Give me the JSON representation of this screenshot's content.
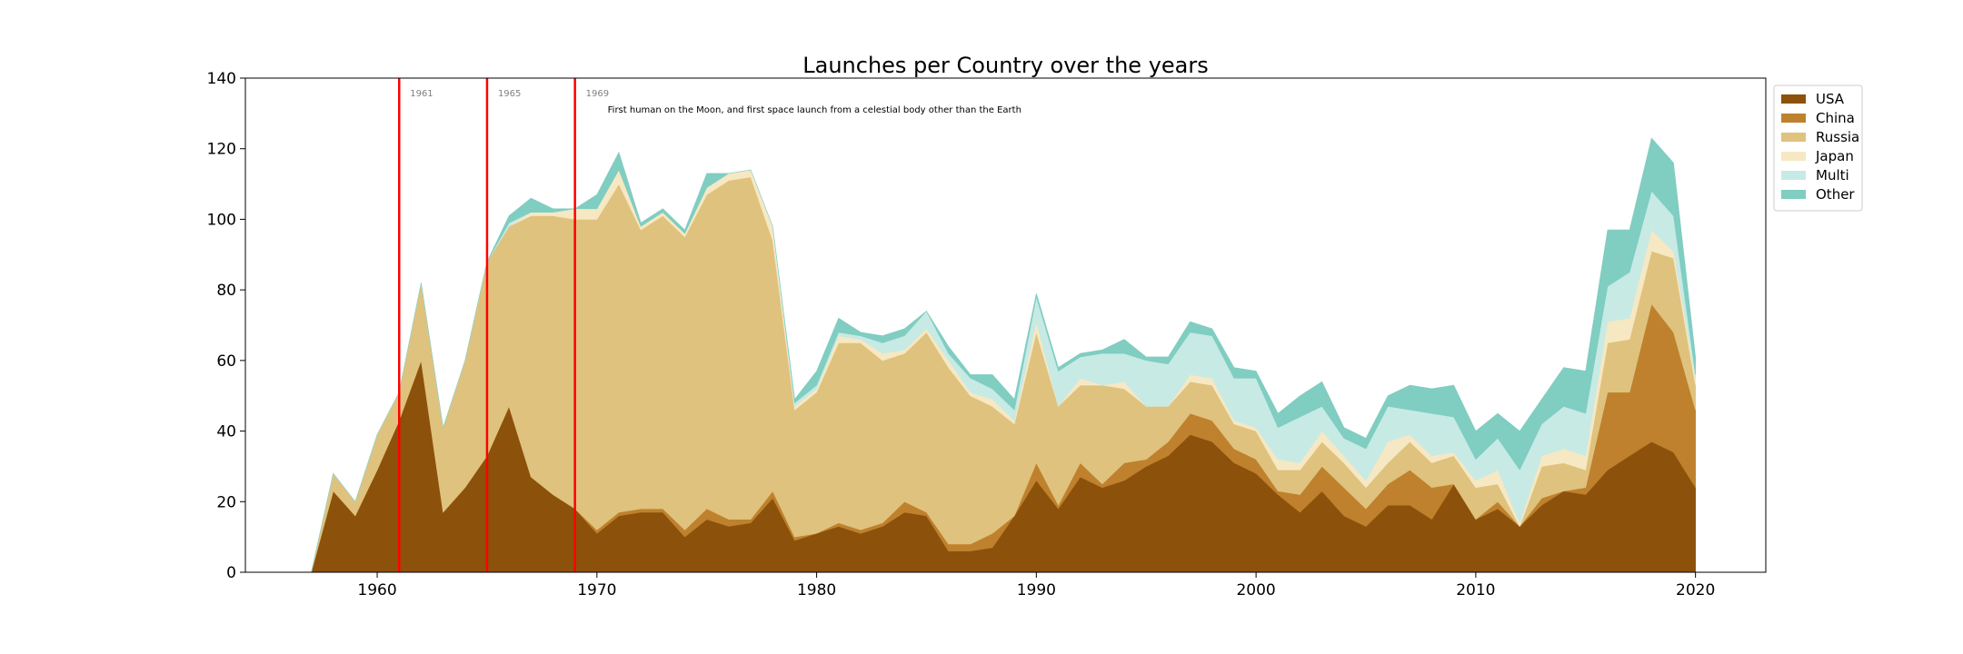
{
  "chart_data": {
    "type": "area",
    "stacked": true,
    "title": "Launches per Country over the years",
    "xlabel": "",
    "ylabel": "",
    "xlim": [
      1954,
      2023.2
    ],
    "ylim": [
      0,
      140
    ],
    "x_ticks": [
      1960,
      1970,
      1980,
      1990,
      2000,
      2010,
      2020
    ],
    "y_ticks": [
      0,
      20,
      40,
      60,
      80,
      100,
      120,
      140
    ],
    "grid": false,
    "legend_position": "outside-top-right",
    "x": [
      1957,
      1958,
      1959,
      1960,
      1961,
      1962,
      1963,
      1964,
      1965,
      1966,
      1967,
      1968,
      1969,
      1970,
      1971,
      1972,
      1973,
      1974,
      1975,
      1976,
      1977,
      1978,
      1979,
      1980,
      1981,
      1982,
      1983,
      1984,
      1985,
      1986,
      1987,
      1988,
      1989,
      1990,
      1991,
      1992,
      1993,
      1994,
      1995,
      1996,
      1997,
      1998,
      1999,
      2000,
      2001,
      2002,
      2003,
      2004,
      2005,
      2006,
      2007,
      2008,
      2009,
      2010,
      2011,
      2012,
      2013,
      2014,
      2015,
      2016,
      2017,
      2018,
      2019,
      2020
    ],
    "series": [
      {
        "name": "USA",
        "color": "#8c510a",
        "values": [
          0,
          23,
          16,
          29,
          43,
          60,
          17,
          24,
          33,
          47,
          27,
          22,
          18,
          11,
          16,
          17,
          17,
          10,
          15,
          13,
          14,
          21,
          9,
          11,
          13,
          11,
          13,
          17,
          16,
          6,
          6,
          7,
          16,
          26,
          18,
          27,
          24,
          26,
          30,
          33,
          39,
          37,
          31,
          28,
          22,
          17,
          23,
          16,
          13,
          19,
          19,
          15,
          25,
          15,
          18,
          13,
          19,
          23,
          22,
          29,
          33,
          37,
          34,
          24
        ]
      },
      {
        "name": "China",
        "color": "#bf812d",
        "values": [
          0,
          0,
          0,
          0,
          0,
          0,
          0,
          0,
          0,
          0,
          0,
          0,
          0,
          1,
          1,
          1,
          1,
          2,
          3,
          2,
          1,
          2,
          1,
          0,
          1,
          1,
          1,
          3,
          1,
          2,
          2,
          4,
          0,
          5,
          1,
          4,
          1,
          5,
          2,
          4,
          6,
          6,
          4,
          4,
          1,
          5,
          7,
          8,
          5,
          6,
          10,
          9,
          0,
          0,
          2,
          0,
          2,
          0,
          2,
          22,
          18,
          39,
          34,
          22
        ]
      },
      {
        "name": "Russia",
        "color": "#dfc27d",
        "values": [
          0,
          5,
          4,
          10,
          8,
          22,
          24,
          36,
          55,
          51,
          74,
          79,
          82,
          88,
          93,
          79,
          83,
          83,
          89,
          96,
          97,
          71,
          36,
          40,
          51,
          53,
          46,
          42,
          51,
          50,
          42,
          36,
          26,
          37,
          28,
          22,
          28,
          21,
          15,
          10,
          9,
          10,
          7,
          8,
          6,
          7,
          7,
          7,
          6,
          6,
          8,
          7,
          8,
          9,
          5,
          0,
          9,
          8,
          5,
          14,
          15,
          15,
          21,
          7
        ]
      },
      {
        "name": "Japan",
        "color": "#f6e8c3",
        "values": [
          0,
          0,
          0,
          0,
          0,
          0,
          0,
          0,
          0,
          0,
          1,
          1,
          3,
          3,
          4,
          1,
          1,
          1,
          2,
          2,
          2,
          4,
          1,
          1,
          2,
          1,
          2,
          1,
          1,
          2,
          1,
          2,
          1,
          3,
          0,
          2,
          0,
          2,
          0,
          0,
          2,
          2,
          1,
          1,
          3,
          2,
          3,
          2,
          2,
          6,
          2,
          2,
          1,
          2,
          4,
          1,
          3,
          4,
          4,
          6,
          6,
          6,
          2,
          2
        ]
      },
      {
        "name": "Multi",
        "color": "#c7eae5",
        "values": [
          0,
          0,
          0,
          0,
          0,
          0,
          0,
          0,
          0,
          1,
          0,
          0,
          0,
          0,
          0,
          0,
          0,
          0,
          0,
          0,
          0,
          0,
          1,
          1,
          1,
          1,
          3,
          4,
          5,
          2,
          4,
          3,
          3,
          7,
          10,
          6,
          9,
          8,
          13,
          12,
          12,
          12,
          12,
          14,
          9,
          13,
          7,
          5,
          9,
          10,
          7,
          12,
          10,
          6,
          9,
          15,
          9,
          12,
          12,
          10,
          13,
          11,
          10,
          1
        ]
      },
      {
        "name": "Other",
        "color": "#80cdc1",
        "values": [
          0,
          0,
          0,
          0,
          0,
          0,
          0,
          0,
          0,
          2,
          4,
          1,
          0,
          4,
          5,
          1,
          1,
          1,
          4,
          0,
          0,
          0,
          1,
          4,
          4,
          1,
          2,
          2,
          0,
          2,
          1,
          4,
          3,
          1,
          1,
          1,
          1,
          4,
          1,
          2,
          3,
          2,
          3,
          2,
          4,
          6,
          7,
          3,
          3,
          3,
          7,
          7,
          9,
          8,
          7,
          11,
          7,
          11,
          12,
          16,
          12,
          15,
          15,
          5
        ]
      }
    ],
    "events": [
      {
        "year": 1961,
        "label": "1961",
        "note": ""
      },
      {
        "year": 1965,
        "label": "1965",
        "note": ""
      },
      {
        "year": 1969,
        "label": "1969",
        "note": "First human on the Moon, and first space launch from a celestial body other than the Earth"
      }
    ],
    "event_line_color": "#ff0000"
  }
}
